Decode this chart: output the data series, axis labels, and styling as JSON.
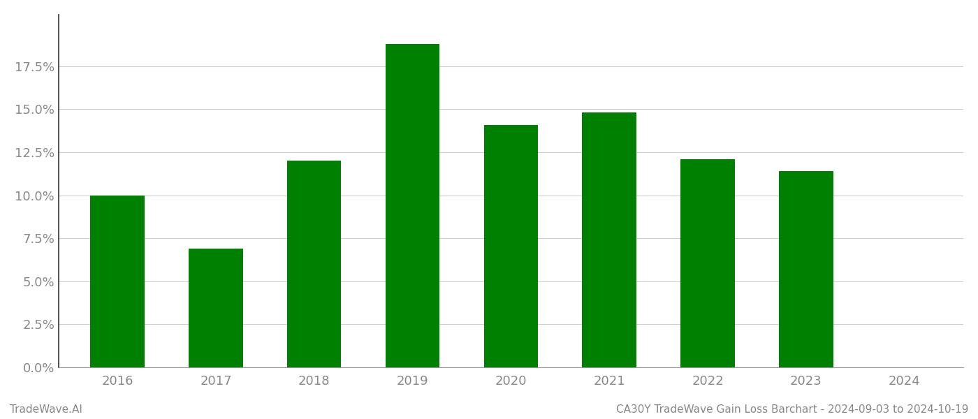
{
  "categories": [
    "2016",
    "2017",
    "2018",
    "2019",
    "2020",
    "2021",
    "2022",
    "2023",
    "2024"
  ],
  "values": [
    0.1,
    0.069,
    0.12,
    0.188,
    0.141,
    0.148,
    0.121,
    0.114,
    null
  ],
  "bar_color": "#008000",
  "background_color": "#ffffff",
  "ylim": [
    0.0,
    0.205
  ],
  "yticks": [
    0.0,
    0.025,
    0.05,
    0.075,
    0.1,
    0.125,
    0.15,
    0.175
  ],
  "grid_color": "#cccccc",
  "spine_color": "#333333",
  "axis_color": "#999999",
  "tick_label_color": "#888888",
  "footer_left": "TradeWave.AI",
  "footer_right": "CA30Y TradeWave Gain Loss Barchart - 2024-09-03 to 2024-10-19",
  "footer_fontsize": 11,
  "tick_fontsize": 13,
  "bar_width": 0.55
}
